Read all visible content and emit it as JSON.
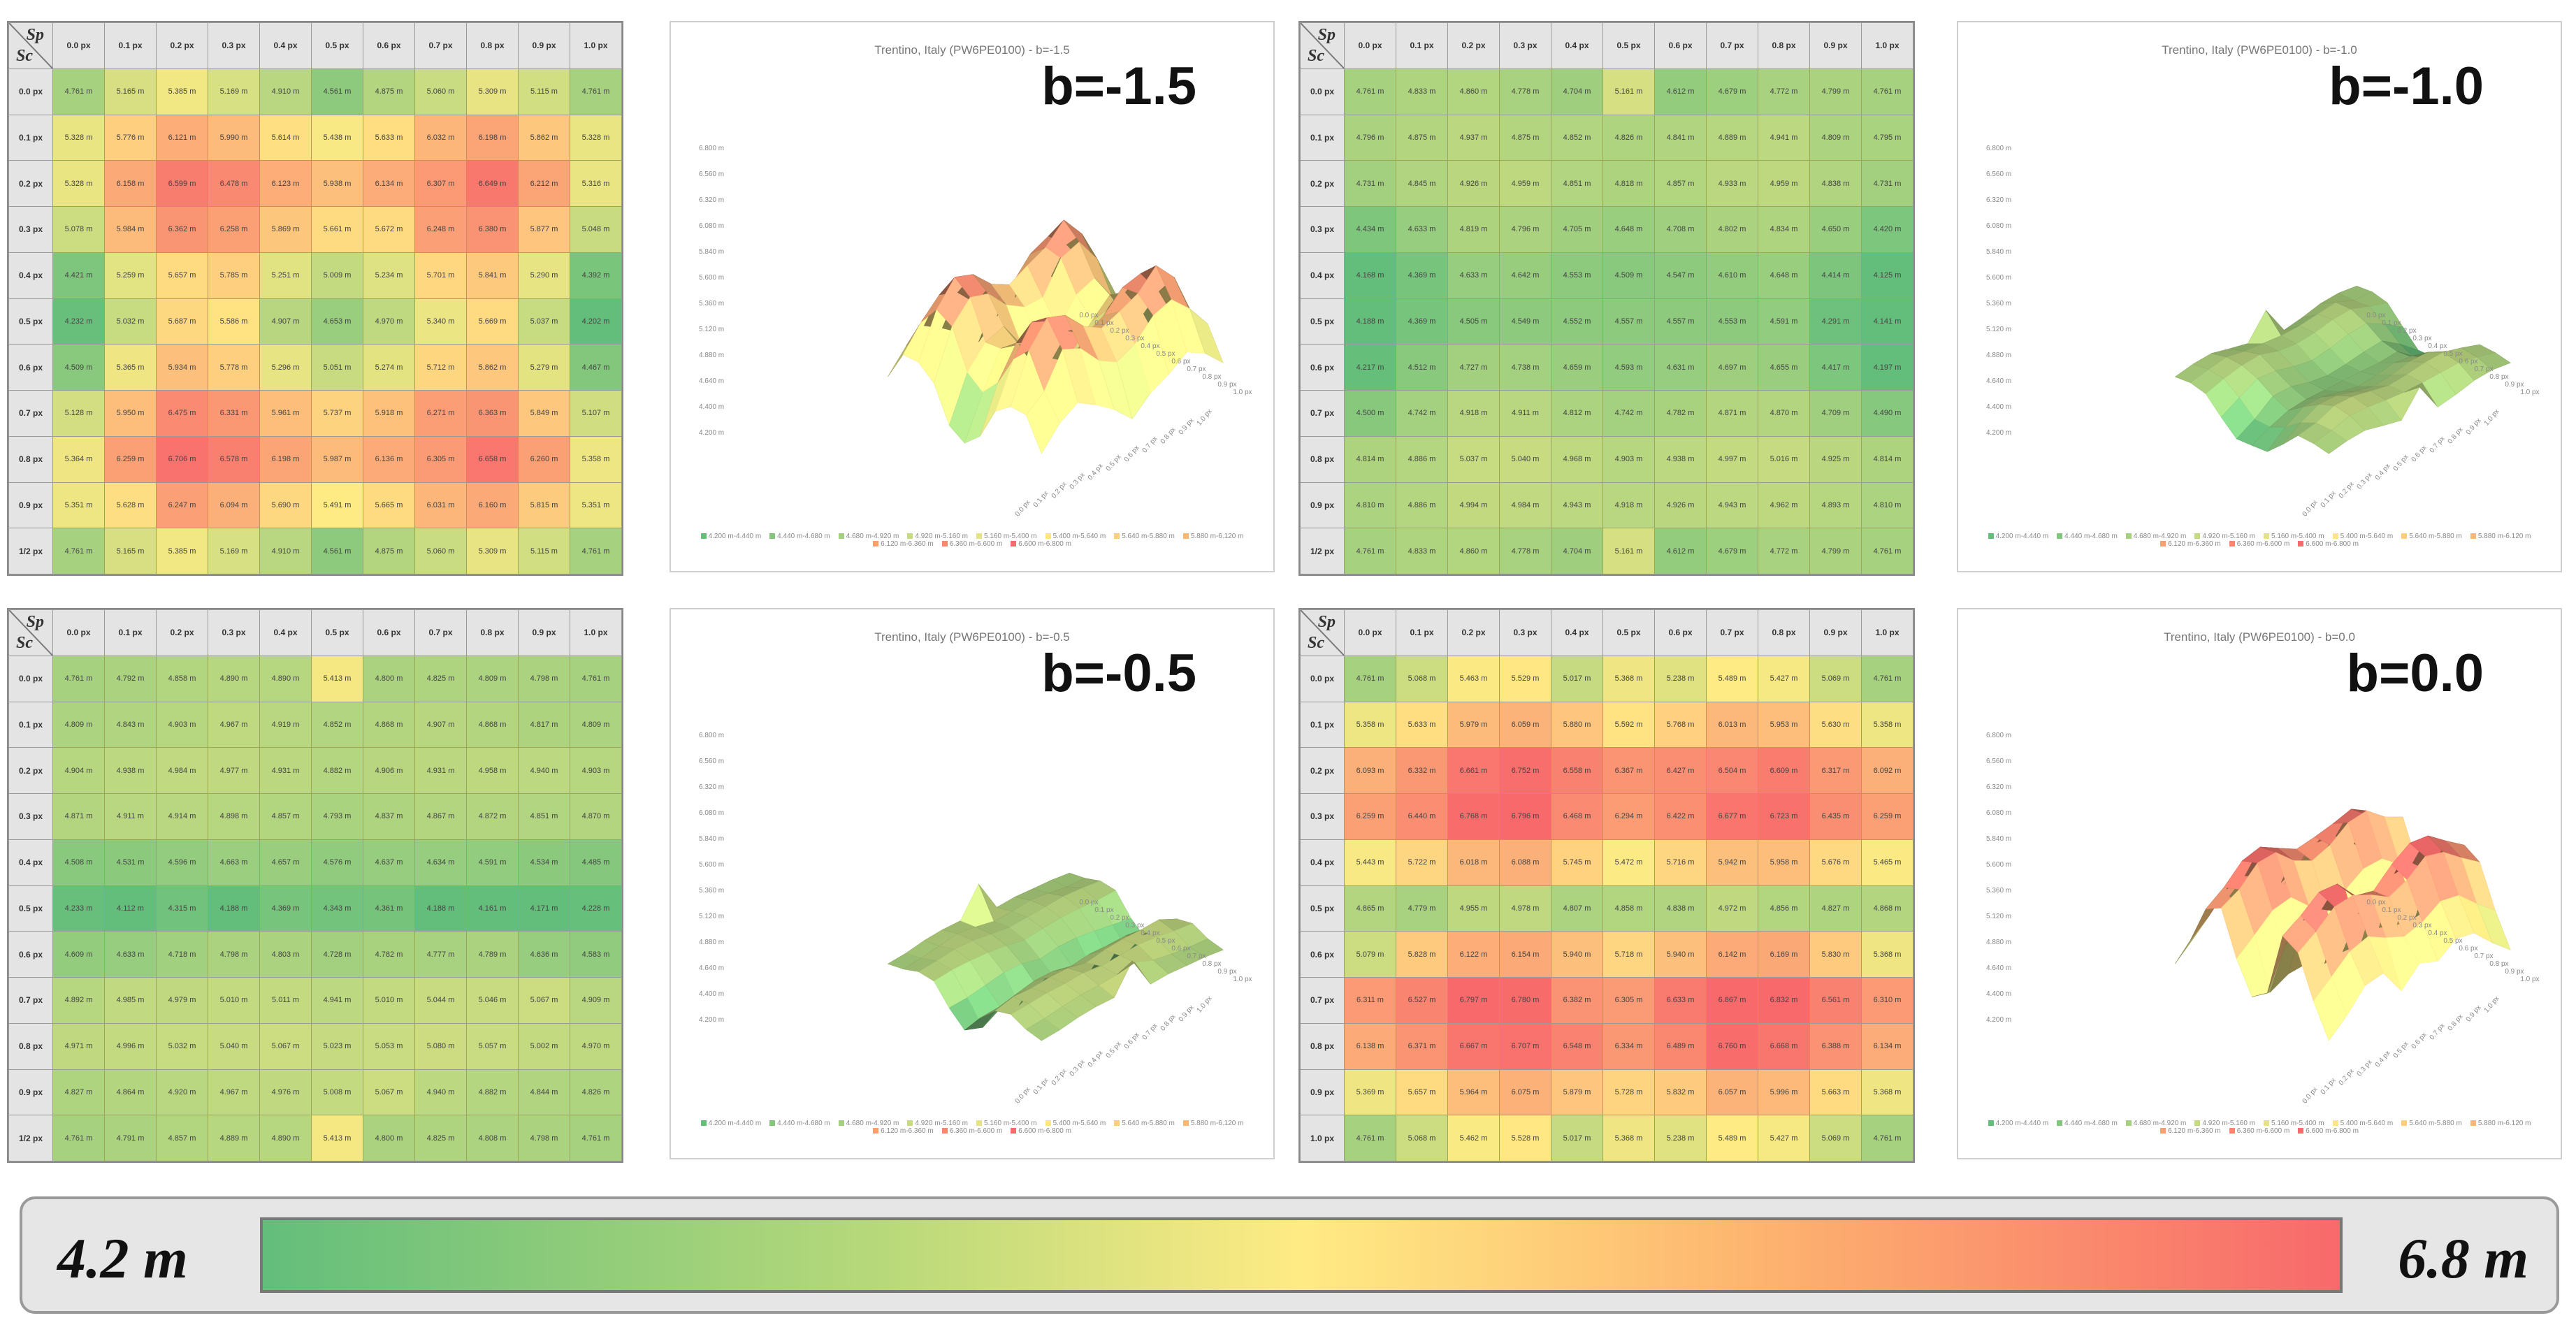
{
  "colorscale": {
    "min_label": "4.2 m",
    "max_label": "6.8 m",
    "min_value": 4.2,
    "max_value": 6.8,
    "colors": [
      "#63be7b",
      "#ffeb84",
      "#f8696b"
    ]
  },
  "axis": {
    "sp_symbol": "Sp",
    "sc_symbol": "Sc"
  },
  "panels": [
    {
      "b_label": "b=-1.5",
      "plot_title": "Trentino, Italy (PW6PE0100) - b=-1.5",
      "col_headers": [
        "0.0 px",
        "0.1 px",
        "0.2 px",
        "0.3 px",
        "0.4 px",
        "0.5 px",
        "0.6 px",
        "0.7 px",
        "0.8 px",
        "0.9 px",
        "1.0 px"
      ],
      "row_headers": [
        "0.0 px",
        "0.1 px",
        "0.2 px",
        "0.3 px",
        "0.4 px",
        "0.5 px",
        "0.6 px",
        "0.7 px",
        "0.8 px",
        "0.9 px",
        "1/2 px"
      ],
      "cells": [
        [
          4.761,
          5.165,
          5.385,
          5.169,
          4.91,
          4.561,
          4.875,
          5.06,
          5.309,
          5.115,
          4.761
        ],
        [
          5.328,
          5.776,
          6.121,
          5.99,
          5.614,
          5.438,
          5.633,
          6.032,
          6.198,
          5.862,
          5.328
        ],
        [
          5.328,
          6.158,
          6.599,
          6.478,
          6.123,
          5.938,
          6.134,
          6.307,
          6.649,
          6.212,
          5.316
        ],
        [
          5.078,
          5.984,
          6.362,
          6.258,
          5.869,
          5.661,
          5.672,
          6.248,
          6.38,
          5.877,
          5.048
        ],
        [
          4.421,
          5.259,
          5.657,
          5.785,
          5.251,
          5.009,
          5.234,
          5.701,
          5.841,
          5.29,
          4.392
        ],
        [
          4.232,
          5.032,
          5.687,
          5.586,
          4.907,
          4.653,
          4.97,
          5.34,
          5.669,
          5.037,
          4.202
        ],
        [
          4.509,
          5.365,
          5.934,
          5.778,
          5.296,
          5.051,
          5.274,
          5.712,
          5.862,
          5.279,
          4.467
        ],
        [
          5.128,
          5.95,
          6.475,
          6.331,
          5.961,
          5.737,
          5.918,
          6.271,
          6.363,
          5.849,
          5.107
        ],
        [
          5.364,
          6.259,
          6.706,
          6.578,
          6.198,
          5.987,
          6.136,
          6.305,
          6.658,
          6.26,
          5.358
        ],
        [
          5.351,
          5.628,
          6.247,
          6.094,
          5.69,
          5.491,
          5.665,
          6.031,
          6.16,
          5.815,
          5.351
        ],
        [
          4.761,
          5.165,
          5.385,
          5.169,
          4.91,
          4.561,
          4.875,
          5.06,
          5.309,
          5.115,
          4.761
        ]
      ]
    },
    {
      "b_label": "b=-1.0",
      "plot_title": "Trentino, Italy (PW6PE0100) - b=-1.0",
      "col_headers": [
        "0.0 px",
        "0.1 px",
        "0.2 px",
        "0.3 px",
        "0.4 px",
        "0.5 px",
        "0.6 px",
        "0.7 px",
        "0.8 px",
        "0.9 px",
        "1.0 px"
      ],
      "row_headers": [
        "0.0 px",
        "0.1 px",
        "0.2 px",
        "0.3 px",
        "0.4 px",
        "0.5 px",
        "0.6 px",
        "0.7 px",
        "0.8 px",
        "0.9 px",
        "1/2 px"
      ],
      "cells": [
        [
          4.761,
          4.833,
          4.86,
          4.778,
          4.704,
          5.161,
          4.612,
          4.679,
          4.772,
          4.799,
          4.761
        ],
        [
          4.796,
          4.875,
          4.937,
          4.875,
          4.852,
          4.826,
          4.841,
          4.889,
          4.941,
          4.809,
          4.795
        ],
        [
          4.731,
          4.845,
          4.926,
          4.959,
          4.851,
          4.818,
          4.857,
          4.933,
          4.959,
          4.838,
          4.731
        ],
        [
          4.434,
          4.633,
          4.819,
          4.796,
          4.705,
          4.648,
          4.708,
          4.802,
          4.834,
          4.65,
          4.42
        ],
        [
          4.168,
          4.369,
          4.633,
          4.642,
          4.553,
          4.509,
          4.547,
          4.61,
          4.648,
          4.414,
          4.125
        ],
        [
          4.188,
          4.369,
          4.505,
          4.549,
          4.552,
          4.557,
          4.557,
          4.553,
          4.591,
          4.291,
          4.141
        ],
        [
          4.217,
          4.512,
          4.727,
          4.738,
          4.659,
          4.593,
          4.631,
          4.697,
          4.655,
          4.417,
          4.197
        ],
        [
          4.5,
          4.742,
          4.918,
          4.911,
          4.812,
          4.742,
          4.782,
          4.871,
          4.87,
          4.709,
          4.49
        ],
        [
          4.814,
          4.886,
          5.037,
          5.04,
          4.968,
          4.903,
          4.938,
          4.997,
          5.016,
          4.925,
          4.814
        ],
        [
          4.81,
          4.886,
          4.994,
          4.984,
          4.943,
          4.918,
          4.926,
          4.943,
          4.962,
          4.893,
          4.81
        ],
        [
          4.761,
          4.833,
          4.86,
          4.778,
          4.704,
          5.161,
          4.612,
          4.679,
          4.772,
          4.799,
          4.761
        ]
      ]
    },
    {
      "b_label": "b=-0.5",
      "plot_title": "Trentino, Italy (PW6PE0100) - b=-0.5",
      "col_headers": [
        "0.0 px",
        "0.1 px",
        "0.2 px",
        "0.3 px",
        "0.4 px",
        "0.5 px",
        "0.6 px",
        "0.7 px",
        "0.8 px",
        "0.9 px",
        "1.0 px"
      ],
      "row_headers": [
        "0.0 px",
        "0.1 px",
        "0.2 px",
        "0.3 px",
        "0.4 px",
        "0.5 px",
        "0.6 px",
        "0.7 px",
        "0.8 px",
        "0.9 px",
        "1/2 px"
      ],
      "cells": [
        [
          4.761,
          4.792,
          4.858,
          4.89,
          4.89,
          5.413,
          4.8,
          4.825,
          4.809,
          4.798,
          4.761
        ],
        [
          4.809,
          4.843,
          4.903,
          4.967,
          4.919,
          4.852,
          4.868,
          4.907,
          4.868,
          4.817,
          4.809
        ],
        [
          4.904,
          4.938,
          4.984,
          4.977,
          4.931,
          4.882,
          4.906,
          4.931,
          4.958,
          4.94,
          4.903
        ],
        [
          4.871,
          4.911,
          4.914,
          4.898,
          4.857,
          4.793,
          4.837,
          4.867,
          4.872,
          4.851,
          4.87
        ],
        [
          4.508,
          4.531,
          4.596,
          4.663,
          4.657,
          4.576,
          4.637,
          4.634,
          4.591,
          4.534,
          4.485
        ],
        [
          4.233,
          4.112,
          4.315,
          4.188,
          4.369,
          4.343,
          4.361,
          4.188,
          4.161,
          4.171,
          4.228
        ],
        [
          4.609,
          4.633,
          4.718,
          4.798,
          4.803,
          4.728,
          4.782,
          4.777,
          4.789,
          4.636,
          4.583
        ],
        [
          4.892,
          4.985,
          4.979,
          5.01,
          5.011,
          4.941,
          5.01,
          5.044,
          5.046,
          5.067,
          4.909
        ],
        [
          4.971,
          4.996,
          5.032,
          5.04,
          5.067,
          5.023,
          5.053,
          5.08,
          5.057,
          5.002,
          4.97
        ],
        [
          4.827,
          4.864,
          4.92,
          4.967,
          4.976,
          5.008,
          5.067,
          4.94,
          4.882,
          4.844,
          4.826
        ],
        [
          4.761,
          4.791,
          4.857,
          4.889,
          4.89,
          5.413,
          4.8,
          4.825,
          4.808,
          4.798,
          4.761
        ]
      ]
    },
    {
      "b_label": "b=0.0",
      "plot_title": "Trentino, Italy (PW6PE0100) - b=0.0",
      "col_headers": [
        "0.0 px",
        "0.1 px",
        "0.2 px",
        "0.3 px",
        "0.4 px",
        "0.5 px",
        "0.6 px",
        "0.7 px",
        "0.8 px",
        "0.9 px",
        "1.0 px"
      ],
      "row_headers": [
        "0.0 px",
        "0.1 px",
        "0.2 px",
        "0.3 px",
        "0.4 px",
        "0.5 px",
        "0.6 px",
        "0.7 px",
        "0.8 px",
        "0.9 px",
        "1.0 px"
      ],
      "cells": [
        [
          4.761,
          5.068,
          5.463,
          5.529,
          5.017,
          5.368,
          5.238,
          5.489,
          5.427,
          5.069,
          4.761
        ],
        [
          5.358,
          5.633,
          5.979,
          6.059,
          5.88,
          5.592,
          5.768,
          6.013,
          5.953,
          5.63,
          5.358
        ],
        [
          6.093,
          6.332,
          6.661,
          6.752,
          6.558,
          6.367,
          6.427,
          6.504,
          6.609,
          6.317,
          6.092
        ],
        [
          6.259,
          6.44,
          6.768,
          6.796,
          6.468,
          6.294,
          6.422,
          6.677,
          6.723,
          6.435,
          6.259
        ],
        [
          5.443,
          5.722,
          6.018,
          6.088,
          5.745,
          5.472,
          5.716,
          5.942,
          5.958,
          5.676,
          5.465
        ],
        [
          4.865,
          4.779,
          4.955,
          4.978,
          4.807,
          4.858,
          4.838,
          4.972,
          4.856,
          4.827,
          4.868
        ],
        [
          5.079,
          5.828,
          6.122,
          6.154,
          5.94,
          5.718,
          5.94,
          6.142,
          6.169,
          5.83,
          5.368
        ],
        [
          6.311,
          6.527,
          6.797,
          6.78,
          6.382,
          6.305,
          6.633,
          6.867,
          6.832,
          6.561,
          6.31
        ],
        [
          6.138,
          6.371,
          6.667,
          6.707,
          6.548,
          6.334,
          6.489,
          6.76,
          6.668,
          6.388,
          6.134
        ],
        [
          5.369,
          5.657,
          5.964,
          6.075,
          5.879,
          5.728,
          5.832,
          6.057,
          5.996,
          5.663,
          5.368
        ],
        [
          4.761,
          5.068,
          5.462,
          5.528,
          5.017,
          5.368,
          5.238,
          5.489,
          5.427,
          5.069,
          4.761
        ]
      ]
    }
  ],
  "plot_axes": {
    "z_ticks": [
      "6.800 m",
      "6.560 m",
      "6.320 m",
      "6.080 m",
      "5.840 m",
      "5.600 m",
      "5.360 m",
      "5.120 m",
      "4.880 m",
      "4.640 m",
      "4.400 m",
      "4.200 m"
    ],
    "x_ticks": [
      "0.0 px",
      "0.1 px",
      "0.2 px",
      "0.3 px",
      "0.4 px",
      "0.5 px",
      "0.6 px",
      "0.7 px",
      "0.8 px",
      "0.9 px",
      "1.0 px"
    ],
    "y_ticks": [
      "0.0 px",
      "0.1 px",
      "0.2 px",
      "0.3 px",
      "0.4 px",
      "0.5 px",
      "0.6 px",
      "0.7 px",
      "0.8 px",
      "0.9 px",
      "1.0 px"
    ]
  },
  "legend": [
    {
      "label": "4.200 m-4.440 m",
      "color": "#63be7b"
    },
    {
      "label": "4.440 m-4.680 m",
      "color": "#84c77c"
    },
    {
      "label": "4.680 m-4.920 m",
      "color": "#a5d17d"
    },
    {
      "label": "4.920 m-5.160 m",
      "color": "#c6da7f"
    },
    {
      "label": "5.160 m-5.400 m",
      "color": "#e8e382"
    },
    {
      "label": "5.400 m-5.640 m",
      "color": "#ffe583"
    },
    {
      "label": "5.640 m-5.880 m",
      "color": "#fecf7a"
    },
    {
      "label": "5.880 m-6.120 m",
      "color": "#fcb771"
    },
    {
      "label": "6.120 m-6.360 m",
      "color": "#fb9f6f"
    },
    {
      "label": "6.360 m-6.600 m",
      "color": "#f9866d"
    },
    {
      "label": "6.600 m-6.800 m",
      "color": "#f8696b"
    }
  ]
}
